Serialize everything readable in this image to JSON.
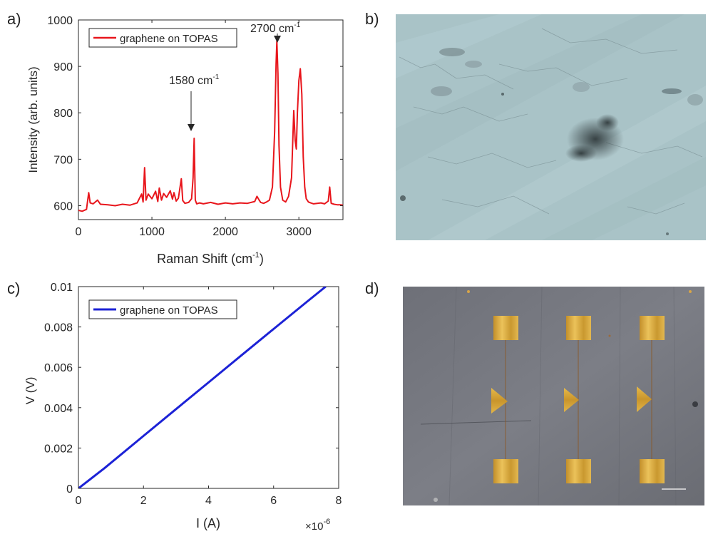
{
  "panels": {
    "a": {
      "label": "a)",
      "chart_data": {
        "type": "line",
        "xlabel": "Raman Shift (cm",
        "xlabel_sup": "-1",
        "xlabel_end": ")",
        "ylabel": "Intensity (arb. units)",
        "xlim": [
          0,
          3600
        ],
        "ylim": [
          570,
          1000
        ],
        "xticks": [
          0,
          1000,
          2000,
          3000
        ],
        "yticks": [
          600,
          700,
          800,
          900,
          1000
        ],
        "legend": "graphene on TOPAS",
        "legend_position": "top-left",
        "color": "#e8161c",
        "annotations": [
          {
            "text": "1580 cm",
            "sup": "-1",
            "x": 1580,
            "y": 745
          },
          {
            "text": "2700 cm",
            "sup": "-1",
            "x": 2700,
            "y": 955
          }
        ],
        "series": [
          {
            "x": [
              0,
              50,
              110,
              140,
              160,
              200,
              260,
              300,
              400,
              500,
              600,
              700,
              800,
              860,
              880,
              900,
              920,
              950,
              1000,
              1050,
              1080,
              1100,
              1130,
              1160,
              1200,
              1250,
              1280,
              1300,
              1330,
              1360,
              1400,
              1420,
              1450,
              1500,
              1540,
              1560,
              1575,
              1590,
              1610,
              1650,
              1700,
              1800,
              1900,
              2000,
              2100,
              2200,
              2300,
              2400,
              2430,
              2460,
              2480,
              2520,
              2560,
              2600,
              2640,
              2670,
              2690,
              2700,
              2715,
              2730,
              2750,
              2780,
              2820,
              2860,
              2900,
              2930,
              2950,
              2965,
              2980,
              3000,
              3020,
              3040,
              3060,
              3080,
              3100,
              3130,
              3160,
              3200,
              3250,
              3300,
              3350,
              3400,
              3420,
              3440,
              3480,
              3520,
              3560,
              3600
            ],
            "y": [
              590,
              588,
              592,
              628,
              606,
              604,
              612,
              603,
              602,
              600,
              603,
              601,
              606,
              625,
              608,
              682,
              612,
              625,
              615,
              631,
              609,
              638,
              612,
              626,
              618,
              632,
              614,
              628,
              610,
              616,
              658,
              611,
              605,
              607,
              615,
              660,
              745,
              612,
              604,
              606,
              604,
              607,
              603,
              606,
              604,
              606,
              605,
              609,
              620,
              612,
              607,
              605,
              608,
              612,
              640,
              760,
              905,
              955,
              885,
              730,
              640,
              612,
              608,
              620,
              660,
              805,
              740,
              722,
              800,
              870,
              895,
              840,
              705,
              640,
              615,
              608,
              606,
              604,
              605,
              606,
              604,
              610,
              640,
              605,
              603,
              602,
              602,
              601
            ]
          }
        ]
      }
    },
    "b": {
      "label": "b)"
    },
    "c": {
      "label": "c)",
      "chart_data": {
        "type": "line",
        "xlabel": "I (A)",
        "ylabel": "V (V)",
        "xlim": [
          0,
          8
        ],
        "ylim": [
          0,
          0.01
        ],
        "xticks": [
          0,
          2,
          4,
          6,
          8
        ],
        "yticks": [
          0,
          0.002,
          0.004,
          0.006,
          0.008,
          0.01
        ],
        "ytick_labels": [
          "0",
          "0.002",
          "0.004",
          "0.006",
          "0.008",
          "0.01"
        ],
        "x_exponent_prefix": "×10",
        "x_exponent_sup": "-6",
        "legend": "graphene on TOPAS",
        "legend_position": "top-left",
        "color": "#1c22d6",
        "series": [
          {
            "x": [
              0,
              0.8,
              2,
              3,
              4,
              5,
              6,
              7,
              7.6
            ],
            "y": [
              0,
              0.001,
              0.0026,
              0.00393,
              0.00525,
              0.00658,
              0.0079,
              0.00922,
              0.01
            ]
          }
        ]
      }
    },
    "d": {
      "label": "d)"
    }
  }
}
